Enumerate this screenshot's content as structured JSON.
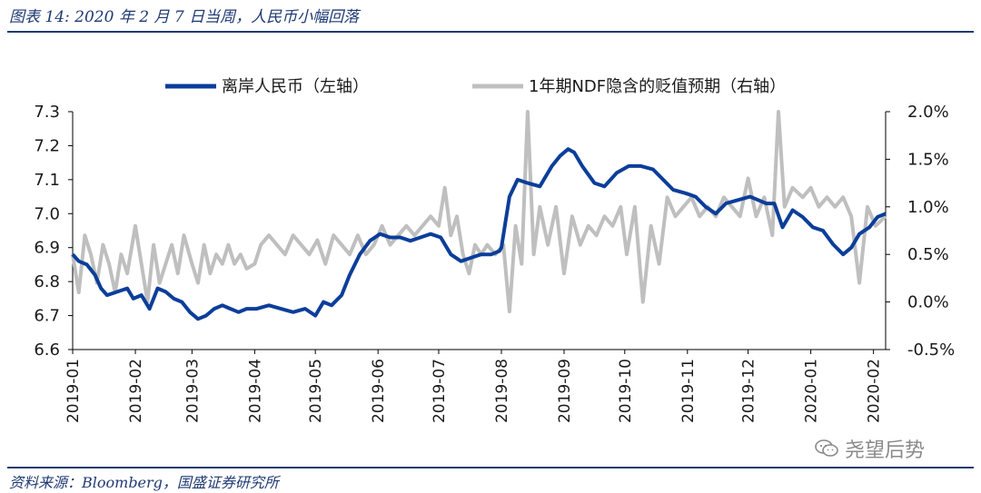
{
  "figure": {
    "title": "图表 14: 2020 年 2 月 7 日当周，人民币小幅回落",
    "source": "资料来源：Bloomberg，国盛证券研究所",
    "watermark": "尧望后势",
    "watermark_icon": "wechat-icon"
  },
  "colors": {
    "rmb": "#0b3e9a",
    "ndf": "#bfbfbf",
    "accent": "#1f3a73"
  },
  "chart_data": {
    "type": "line",
    "title": "",
    "x_tick_labels": [
      "2019-01",
      "2019-02",
      "2019-03",
      "2019-04",
      "2019-05",
      "2019-06",
      "2019-07",
      "2019-08",
      "2019-09",
      "2019-10",
      "2019-11",
      "2019-12",
      "2020-01",
      "2020-02"
    ],
    "x_range": [
      "2019-01-01",
      "2020-02-07"
    ],
    "left_axis": {
      "ylim": [
        6.6,
        7.3
      ],
      "ticks": [
        "6.6",
        "6.7",
        "6.8",
        "6.9",
        "7.0",
        "7.1",
        "7.2",
        "7.3"
      ]
    },
    "right_axis": {
      "ylim": [
        -0.5,
        2.0
      ],
      "ticks": [
        "-0.5%",
        "0.0%",
        "0.5%",
        "1.0%",
        "1.5%",
        "2.0%"
      ]
    },
    "legend_position": "top",
    "grid": false,
    "series": [
      {
        "name": "离岸人民币（左轴）",
        "axis": "left",
        "points": [
          [
            "2019-01-01",
            6.88
          ],
          [
            "2019-01-04",
            6.86
          ],
          [
            "2019-01-08",
            6.85
          ],
          [
            "2019-01-12",
            6.82
          ],
          [
            "2019-01-15",
            6.78
          ],
          [
            "2019-01-18",
            6.76
          ],
          [
            "2019-01-23",
            6.77
          ],
          [
            "2019-01-28",
            6.78
          ],
          [
            "2019-01-31",
            6.75
          ],
          [
            "2019-02-04",
            6.76
          ],
          [
            "2019-02-08",
            6.72
          ],
          [
            "2019-02-12",
            6.78
          ],
          [
            "2019-02-16",
            6.77
          ],
          [
            "2019-02-20",
            6.75
          ],
          [
            "2019-02-24",
            6.74
          ],
          [
            "2019-02-28",
            6.71
          ],
          [
            "2019-03-04",
            6.69
          ],
          [
            "2019-03-08",
            6.7
          ],
          [
            "2019-03-12",
            6.72
          ],
          [
            "2019-03-16",
            6.73
          ],
          [
            "2019-03-20",
            6.72
          ],
          [
            "2019-03-24",
            6.71
          ],
          [
            "2019-03-28",
            6.72
          ],
          [
            "2019-04-02",
            6.72
          ],
          [
            "2019-04-08",
            6.73
          ],
          [
            "2019-04-14",
            6.72
          ],
          [
            "2019-04-20",
            6.71
          ],
          [
            "2019-04-26",
            6.72
          ],
          [
            "2019-05-01",
            6.7
          ],
          [
            "2019-05-05",
            6.74
          ],
          [
            "2019-05-09",
            6.73
          ],
          [
            "2019-05-14",
            6.76
          ],
          [
            "2019-05-18",
            6.82
          ],
          [
            "2019-05-23",
            6.88
          ],
          [
            "2019-05-28",
            6.92
          ],
          [
            "2019-06-02",
            6.94
          ],
          [
            "2019-06-07",
            6.93
          ],
          [
            "2019-06-12",
            6.93
          ],
          [
            "2019-06-17",
            6.92
          ],
          [
            "2019-06-22",
            6.93
          ],
          [
            "2019-06-27",
            6.94
          ],
          [
            "2019-07-02",
            6.93
          ],
          [
            "2019-07-07",
            6.88
          ],
          [
            "2019-07-12",
            6.86
          ],
          [
            "2019-07-17",
            6.87
          ],
          [
            "2019-07-22",
            6.88
          ],
          [
            "2019-07-27",
            6.88
          ],
          [
            "2019-07-31",
            6.89
          ],
          [
            "2019-08-01",
            6.9
          ],
          [
            "2019-08-05",
            7.05
          ],
          [
            "2019-08-09",
            7.1
          ],
          [
            "2019-08-14",
            7.09
          ],
          [
            "2019-08-20",
            7.08
          ],
          [
            "2019-08-26",
            7.14
          ],
          [
            "2019-08-30",
            7.17
          ],
          [
            "2019-09-03",
            7.19
          ],
          [
            "2019-09-06",
            7.18
          ],
          [
            "2019-09-10",
            7.14
          ],
          [
            "2019-09-16",
            7.09
          ],
          [
            "2019-09-21",
            7.08
          ],
          [
            "2019-09-27",
            7.12
          ],
          [
            "2019-10-03",
            7.14
          ],
          [
            "2019-10-09",
            7.14
          ],
          [
            "2019-10-15",
            7.13
          ],
          [
            "2019-10-20",
            7.1
          ],
          [
            "2019-10-25",
            7.07
          ],
          [
            "2019-10-31",
            7.06
          ],
          [
            "2019-11-05",
            7.05
          ],
          [
            "2019-11-10",
            7.02
          ],
          [
            "2019-11-15",
            7.0
          ],
          [
            "2019-11-20",
            7.03
          ],
          [
            "2019-11-26",
            7.04
          ],
          [
            "2019-12-02",
            7.05
          ],
          [
            "2019-12-06",
            7.04
          ],
          [
            "2019-12-10",
            7.03
          ],
          [
            "2019-12-14",
            7.03
          ],
          [
            "2019-12-18",
            6.96
          ],
          [
            "2019-12-23",
            7.01
          ],
          [
            "2019-12-28",
            6.99
          ],
          [
            "2020-01-02",
            6.96
          ],
          [
            "2020-01-07",
            6.95
          ],
          [
            "2020-01-12",
            6.91
          ],
          [
            "2020-01-17",
            6.88
          ],
          [
            "2020-01-21",
            6.9
          ],
          [
            "2020-01-25",
            6.94
          ],
          [
            "2020-01-30",
            6.96
          ],
          [
            "2020-02-03",
            6.99
          ],
          [
            "2020-02-07",
            7.0
          ]
        ]
      },
      {
        "name": "1年期NDF隐含的贬值预期（右轴）",
        "axis": "right",
        "points": [
          [
            "2019-01-01",
            0.5
          ],
          [
            "2019-01-04",
            0.1
          ],
          [
            "2019-01-07",
            0.7
          ],
          [
            "2019-01-10",
            0.5
          ],
          [
            "2019-01-13",
            0.2
          ],
          [
            "2019-01-16",
            0.6
          ],
          [
            "2019-01-19",
            0.4
          ],
          [
            "2019-01-22",
            0.1
          ],
          [
            "2019-01-25",
            0.5
          ],
          [
            "2019-01-28",
            0.3
          ],
          [
            "2019-02-01",
            0.8
          ],
          [
            "2019-02-04",
            0.4
          ],
          [
            "2019-02-07",
            0.0
          ],
          [
            "2019-02-10",
            0.6
          ],
          [
            "2019-02-13",
            0.2
          ],
          [
            "2019-02-16",
            0.4
          ],
          [
            "2019-02-19",
            0.6
          ],
          [
            "2019-02-22",
            0.3
          ],
          [
            "2019-02-25",
            0.7
          ],
          [
            "2019-03-01",
            0.4
          ],
          [
            "2019-03-04",
            0.2
          ],
          [
            "2019-03-07",
            0.6
          ],
          [
            "2019-03-10",
            0.3
          ],
          [
            "2019-03-13",
            0.5
          ],
          [
            "2019-03-16",
            0.4
          ],
          [
            "2019-03-19",
            0.6
          ],
          [
            "2019-03-22",
            0.4
          ],
          [
            "2019-03-25",
            0.5
          ],
          [
            "2019-03-28",
            0.35
          ],
          [
            "2019-04-01",
            0.4
          ],
          [
            "2019-04-04",
            0.6
          ],
          [
            "2019-04-08",
            0.7
          ],
          [
            "2019-04-12",
            0.6
          ],
          [
            "2019-04-16",
            0.5
          ],
          [
            "2019-04-20",
            0.7
          ],
          [
            "2019-04-24",
            0.6
          ],
          [
            "2019-04-28",
            0.5
          ],
          [
            "2019-05-02",
            0.65
          ],
          [
            "2019-05-06",
            0.4
          ],
          [
            "2019-05-10",
            0.7
          ],
          [
            "2019-05-14",
            0.6
          ],
          [
            "2019-05-18",
            0.5
          ],
          [
            "2019-05-22",
            0.7
          ],
          [
            "2019-05-26",
            0.5
          ],
          [
            "2019-05-30",
            0.6
          ],
          [
            "2019-06-03",
            0.8
          ],
          [
            "2019-06-07",
            0.6
          ],
          [
            "2019-06-11",
            0.7
          ],
          [
            "2019-06-15",
            0.8
          ],
          [
            "2019-06-19",
            0.7
          ],
          [
            "2019-06-23",
            0.8
          ],
          [
            "2019-06-27",
            0.9
          ],
          [
            "2019-07-01",
            0.8
          ],
          [
            "2019-07-04",
            1.2
          ],
          [
            "2019-07-07",
            0.7
          ],
          [
            "2019-07-10",
            0.9
          ],
          [
            "2019-07-13",
            0.5
          ],
          [
            "2019-07-16",
            0.3
          ],
          [
            "2019-07-19",
            0.6
          ],
          [
            "2019-07-22",
            0.5
          ],
          [
            "2019-07-25",
            0.6
          ],
          [
            "2019-07-29",
            0.5
          ],
          [
            "2019-08-02",
            0.6
          ],
          [
            "2019-08-05",
            -0.1
          ],
          [
            "2019-08-08",
            0.8
          ],
          [
            "2019-08-11",
            0.4
          ],
          [
            "2019-08-14",
            2.0
          ],
          [
            "2019-08-17",
            0.5
          ],
          [
            "2019-08-20",
            1.0
          ],
          [
            "2019-08-24",
            0.6
          ],
          [
            "2019-08-28",
            1.0
          ],
          [
            "2019-09-01",
            0.3
          ],
          [
            "2019-09-05",
            0.9
          ],
          [
            "2019-09-09",
            0.6
          ],
          [
            "2019-09-13",
            0.8
          ],
          [
            "2019-09-17",
            0.7
          ],
          [
            "2019-09-21",
            0.9
          ],
          [
            "2019-09-25",
            0.8
          ],
          [
            "2019-09-29",
            1.0
          ],
          [
            "2019-10-02",
            0.5
          ],
          [
            "2019-10-06",
            1.0
          ],
          [
            "2019-10-10",
            0.0
          ],
          [
            "2019-10-14",
            0.8
          ],
          [
            "2019-10-18",
            0.4
          ],
          [
            "2019-10-22",
            1.1
          ],
          [
            "2019-10-26",
            0.9
          ],
          [
            "2019-10-30",
            1.0
          ],
          [
            "2019-11-03",
            1.1
          ],
          [
            "2019-11-07",
            0.9
          ],
          [
            "2019-11-11",
            1.0
          ],
          [
            "2019-11-15",
            0.9
          ],
          [
            "2019-11-19",
            1.1
          ],
          [
            "2019-11-23",
            1.0
          ],
          [
            "2019-11-27",
            0.9
          ],
          [
            "2019-12-01",
            1.3
          ],
          [
            "2019-12-05",
            0.9
          ],
          [
            "2019-12-09",
            1.1
          ],
          [
            "2019-12-13",
            0.7
          ],
          [
            "2019-12-16",
            2.0
          ],
          [
            "2019-12-19",
            1.0
          ],
          [
            "2019-12-23",
            1.2
          ],
          [
            "2019-12-28",
            1.1
          ],
          [
            "2020-01-01",
            1.2
          ],
          [
            "2020-01-05",
            1.0
          ],
          [
            "2020-01-09",
            1.1
          ],
          [
            "2020-01-13",
            1.0
          ],
          [
            "2020-01-17",
            1.1
          ],
          [
            "2020-01-21",
            0.9
          ],
          [
            "2020-01-25",
            0.2
          ],
          [
            "2020-01-29",
            1.0
          ],
          [
            "2020-02-02",
            0.8
          ],
          [
            "2020-02-07",
            0.9
          ]
        ]
      }
    ]
  }
}
